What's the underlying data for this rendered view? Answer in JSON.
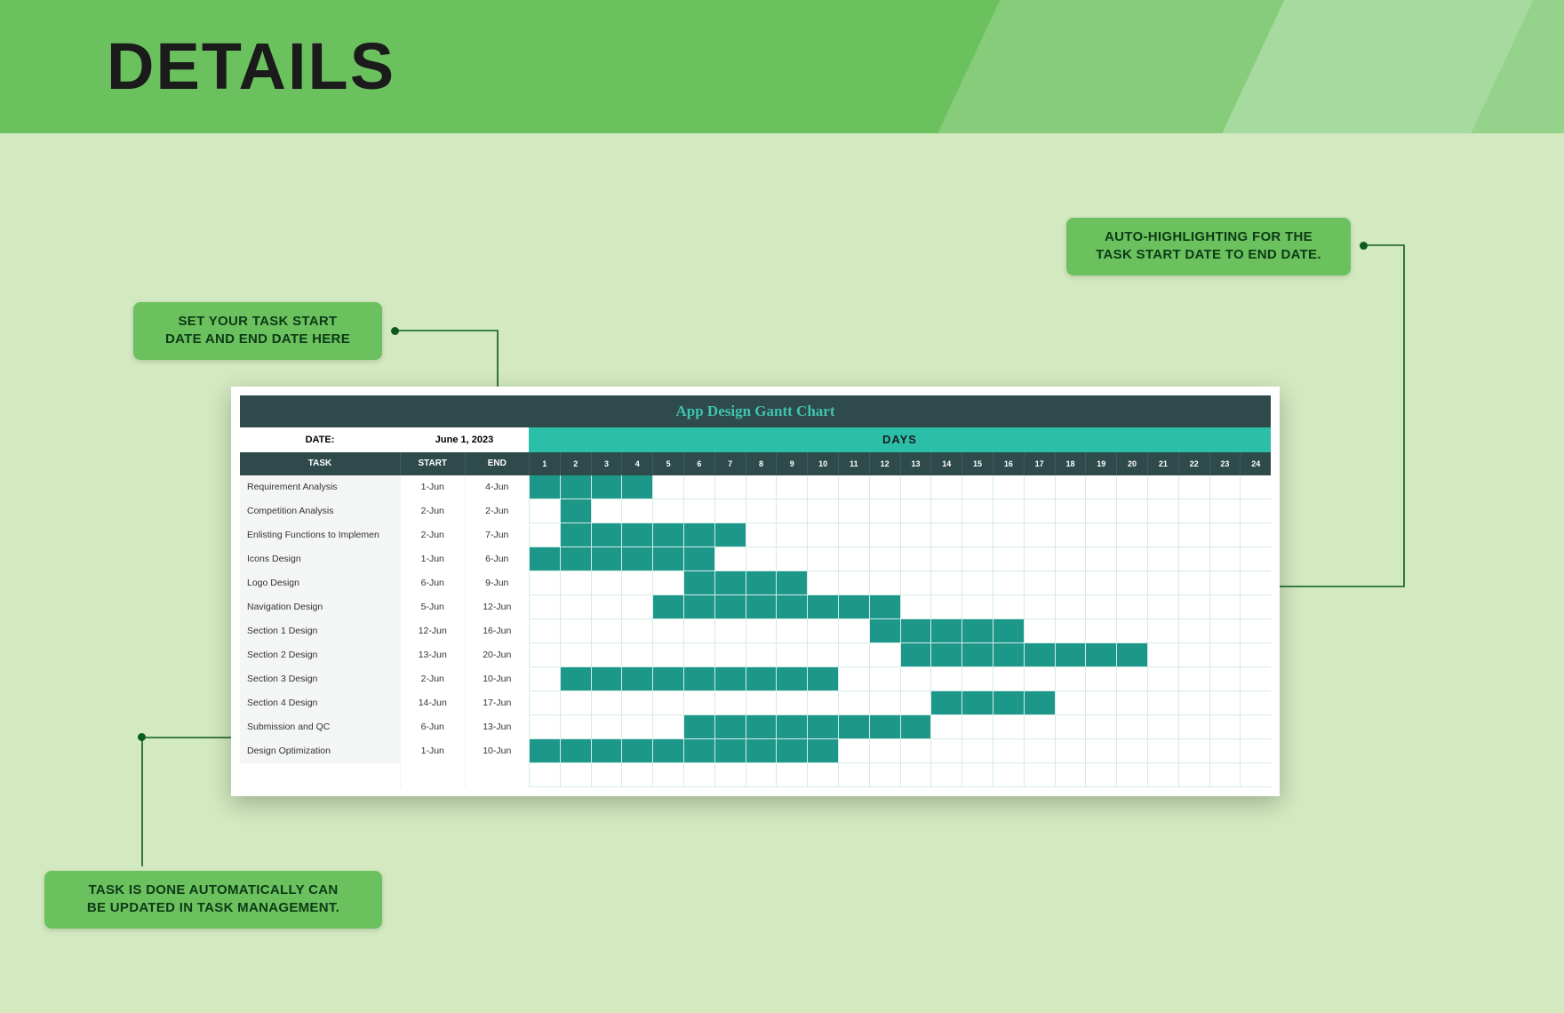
{
  "page": {
    "title": "DETAILS",
    "background_color": "#d3e9c0",
    "banner_color": "#6cc15f"
  },
  "callouts": {
    "top_left": "SET YOUR TASK START\nDATE AND END DATE HERE",
    "top_right": "AUTO-HIGHLIGHTING FOR THE\nTASK START DATE TO END DATE.",
    "bottom": "TASK IS DONE AUTOMATICALLY CAN\nBE UPDATED IN TASK MANAGEMENT."
  },
  "gantt": {
    "title": "App Design Gantt Chart",
    "date_label": "DATE:",
    "date_value": "June 1, 2023",
    "days_label": "DAYS",
    "columns": {
      "task": "TASK",
      "start": "START",
      "end": "END"
    },
    "day_count": 24,
    "colors": {
      "title_bar_bg": "#2e4a4a",
      "title_text": "#3fc4b0",
      "days_header_bg": "#2bbfa9",
      "col_header_bg": "#2e4a4a",
      "cell_fill": "#1d978a",
      "cell_border": "#d2ece6",
      "task_col_bg": "#f4f5f5"
    },
    "tasks": [
      {
        "name": "Requirement Analysis",
        "start": "1-Jun",
        "end": "4-Jun",
        "from": 1,
        "to": 4
      },
      {
        "name": "Competition Analysis",
        "start": "2-Jun",
        "end": "2-Jun",
        "from": 2,
        "to": 2
      },
      {
        "name": "Enlisting Functions to Implemen",
        "start": "2-Jun",
        "end": "7-Jun",
        "from": 2,
        "to": 7
      },
      {
        "name": "Icons Design",
        "start": "1-Jun",
        "end": "6-Jun",
        "from": 1,
        "to": 6
      },
      {
        "name": "Logo Design",
        "start": "6-Jun",
        "end": "9-Jun",
        "from": 6,
        "to": 9
      },
      {
        "name": "Navigation Design",
        "start": "5-Jun",
        "end": "12-Jun",
        "from": 5,
        "to": 12
      },
      {
        "name": "Section 1 Design",
        "start": "12-Jun",
        "end": "16-Jun",
        "from": 12,
        "to": 16
      },
      {
        "name": "Section 2 Design",
        "start": "13-Jun",
        "end": "20-Jun",
        "from": 13,
        "to": 20
      },
      {
        "name": "Section 3 Design",
        "start": "2-Jun",
        "end": "10-Jun",
        "from": 2,
        "to": 10
      },
      {
        "name": "Section 4 Design",
        "start": "14-Jun",
        "end": "17-Jun",
        "from": 14,
        "to": 17
      },
      {
        "name": "Submission and QC",
        "start": "6-Jun",
        "end": "13-Jun",
        "from": 6,
        "to": 13
      },
      {
        "name": "Design Optimization",
        "start": "1-Jun",
        "end": "10-Jun",
        "from": 1,
        "to": 10
      }
    ]
  }
}
